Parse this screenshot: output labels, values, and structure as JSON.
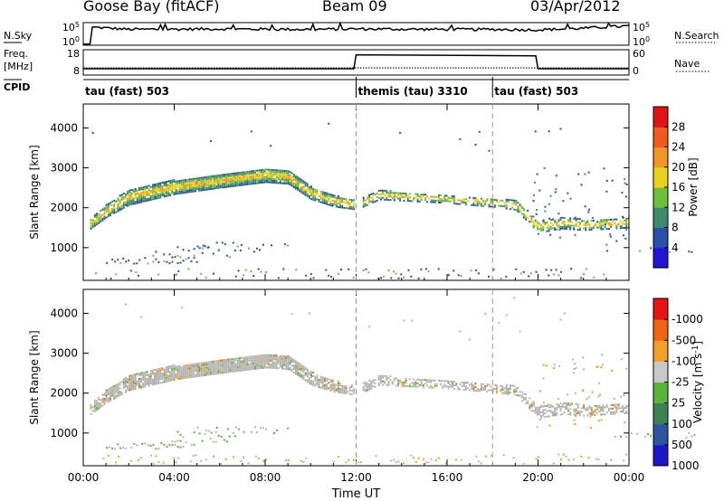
{
  "header": {
    "station": "Goose Bay (fitACF)",
    "beam": "Beam 09",
    "date": "03/Apr/2012"
  },
  "chart_data": [
    {
      "type": "line",
      "name": "noise-panel",
      "left_label": "N.Sky",
      "left_ticks": [
        "10^5",
        "10^0"
      ],
      "right_label": "N.Search",
      "right_ticks": [
        "10^5",
        "10^0"
      ],
      "series": [
        {
          "name": "N.Sky",
          "style": "solid",
          "x_hours": [
            0,
            0.3,
            0.35,
            2,
            6,
            10,
            12,
            16,
            18,
            20,
            22,
            24
          ],
          "level": [
            0.05,
            0.05,
            0.8,
            0.7,
            0.72,
            0.7,
            0.72,
            0.7,
            0.7,
            0.68,
            0.75,
            0.85
          ]
        }
      ]
    },
    {
      "type": "line",
      "name": "freq-panel",
      "left_label": "Freq. [MHz]",
      "left_ticks": [
        18,
        8
      ],
      "right_label": "Nave",
      "right_ticks": [
        60,
        0
      ],
      "series": [
        {
          "name": "Freq",
          "style": "solid",
          "x_hours": [
            0,
            11.9,
            12.0,
            19.9,
            20.0,
            24
          ],
          "values_mhz": [
            10.5,
            10.5,
            16.0,
            15.6,
            10.5,
            10.5
          ]
        },
        {
          "name": "Nave",
          "style": "dotted",
          "x_hours": [
            0,
            12,
            20,
            24
          ],
          "values": [
            17,
            17,
            17,
            17
          ]
        }
      ]
    },
    {
      "type": "text",
      "name": "cpid-row",
      "label": "CPID",
      "segments": [
        {
          "start_hour": 0,
          "text": "tau (fast) 503"
        },
        {
          "start_hour": 12,
          "text": "themis (tau) 3310"
        },
        {
          "start_hour": 18,
          "text": "tau (fast) 503"
        }
      ]
    },
    {
      "type": "heatmap",
      "name": "power-panel",
      "ylabel": "Slant Range [km]",
      "y_ticks": [
        1000,
        2000,
        3000,
        4000
      ],
      "ylim": [
        180,
        4600
      ],
      "x_ticks": [
        "00:00",
        "04:00",
        "08:00",
        "12:00",
        "16:00",
        "20:00",
        "00:00"
      ],
      "xlim_hours": [
        0,
        24
      ],
      "colorbar": {
        "label": "Power [dB]",
        "ticks": [
          4,
          8,
          12,
          16,
          20,
          24,
          28
        ],
        "range": [
          0,
          30
        ],
        "colors": [
          "#1e14d2",
          "#2a4fa8",
          "#3c8a6a",
          "#6fbf3c",
          "#e8d21e",
          "#f09628",
          "#f05a1e",
          "#e01414"
        ]
      },
      "band_center_km": [
        [
          0,
          1450
        ],
        [
          1,
          1900
        ],
        [
          2,
          2250
        ],
        [
          4,
          2500
        ],
        [
          6,
          2650
        ],
        [
          8,
          2800
        ],
        [
          9,
          2750
        ],
        [
          10,
          2350
        ],
        [
          11,
          2150
        ],
        [
          12,
          2050
        ],
        [
          13,
          2300
        ],
        [
          16,
          2200
        ],
        [
          18,
          2100
        ],
        [
          19,
          2050
        ],
        [
          20,
          1500
        ],
        [
          21,
          1600
        ],
        [
          22,
          1550
        ],
        [
          24,
          1600
        ]
      ],
      "band_halfwidth_km": [
        [
          0,
          120
        ],
        [
          2,
          200
        ],
        [
          4,
          180
        ],
        [
          6,
          170
        ],
        [
          8,
          180
        ],
        [
          10,
          160
        ],
        [
          12,
          120
        ],
        [
          14,
          110
        ],
        [
          18,
          100
        ],
        [
          20,
          150
        ],
        [
          24,
          120
        ]
      ]
    },
    {
      "type": "heatmap",
      "name": "velocity-panel",
      "ylabel": "Slant Range [km]",
      "y_ticks": [
        1000,
        2000,
        3000,
        4000
      ],
      "ylim": [
        180,
        4600
      ],
      "x_ticks": [
        "00:00",
        "04:00",
        "08:00",
        "12:00",
        "16:00",
        "20:00",
        "00:00"
      ],
      "xlim_hours": [
        0,
        24
      ],
      "xlabel": "Time UT",
      "colorbar": {
        "label": "Velocity [m s^-1]",
        "ticks": [
          "1000",
          "500",
          "100",
          "25",
          "-25",
          "-100",
          "-500",
          "-1000"
        ],
        "colors": [
          "#1e14c8",
          "#2a55a0",
          "#3c8250",
          "#5ab43c",
          "#c8c8c8",
          "#f0a028",
          "#f06414",
          "#e61414"
        ]
      },
      "ground_scatter_color": "#b4b4b4"
    }
  ]
}
